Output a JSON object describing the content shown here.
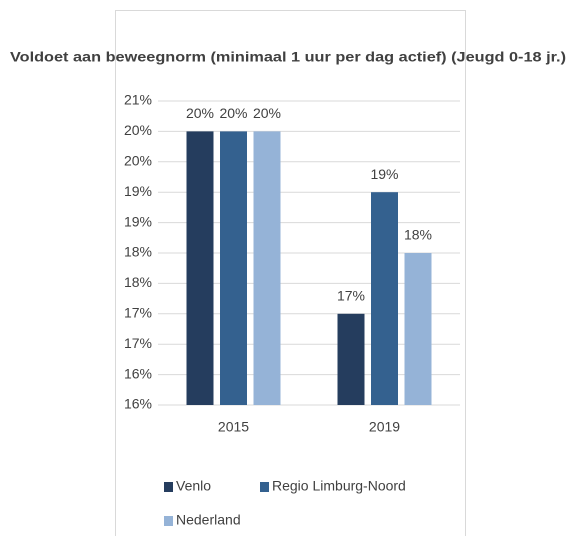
{
  "chart_data": {
    "type": "bar",
    "title": "Voldoet aan beweegnorm (minimaal 1 uur per dag actief) (Jeugd 0-18 jr.)",
    "categories": [
      "2015",
      "2019"
    ],
    "series": [
      {
        "name": "Venlo",
        "color": "#253d5e",
        "values": [
          20,
          17
        ],
        "value_labels": [
          "20%",
          "17%"
        ]
      },
      {
        "name": "Regio Limburg-Noord",
        "color": "#34618f",
        "values": [
          20,
          19
        ],
        "value_labels": [
          "20%",
          "19%"
        ]
      },
      {
        "name": "Nederland",
        "color": "#95b3d7",
        "values": [
          20,
          18
        ],
        "value_labels": [
          "20%",
          "18%"
        ]
      }
    ],
    "ylim": [
      15.5,
      20.5
    ],
    "yticks": [
      {
        "value": 15.5,
        "label": "16%"
      },
      {
        "value": 16,
        "label": "16%"
      },
      {
        "value": 16.5,
        "label": "17%"
      },
      {
        "value": 17,
        "label": "17%"
      },
      {
        "value": 17.5,
        "label": "18%"
      },
      {
        "value": 18,
        "label": "18%"
      },
      {
        "value": 18.5,
        "label": "19%"
      },
      {
        "value": 19,
        "label": "19%"
      },
      {
        "value": 19.5,
        "label": "20%"
      },
      {
        "value": 20,
        "label": "20%"
      },
      {
        "value": 20.5,
        "label": "21%"
      }
    ],
    "grid": true
  }
}
